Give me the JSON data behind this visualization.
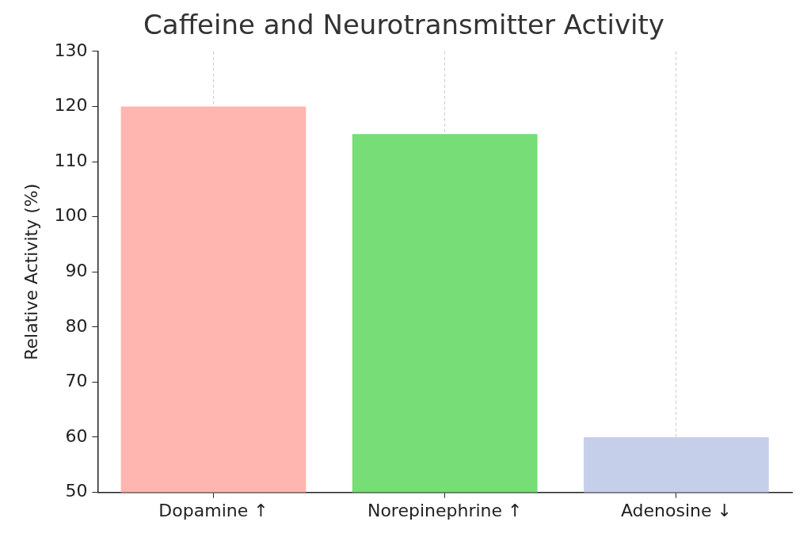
{
  "chart_data": {
    "type": "bar",
    "title": "Caffeine and Neurotransmitter Activity",
    "ylabel": "Relative Activity (%)",
    "categories": [
      "Dopamine ↑",
      "Norepinephrine ↑",
      "Adenosine ↓"
    ],
    "values": [
      120,
      115,
      60
    ],
    "colors": [
      "#ffb6b0",
      "#77dd77",
      "#c6cfea"
    ],
    "ylim": [
      50,
      130
    ],
    "yticks": [
      50,
      60,
      70,
      80,
      90,
      100,
      110,
      120,
      130
    ],
    "grid": "x"
  }
}
